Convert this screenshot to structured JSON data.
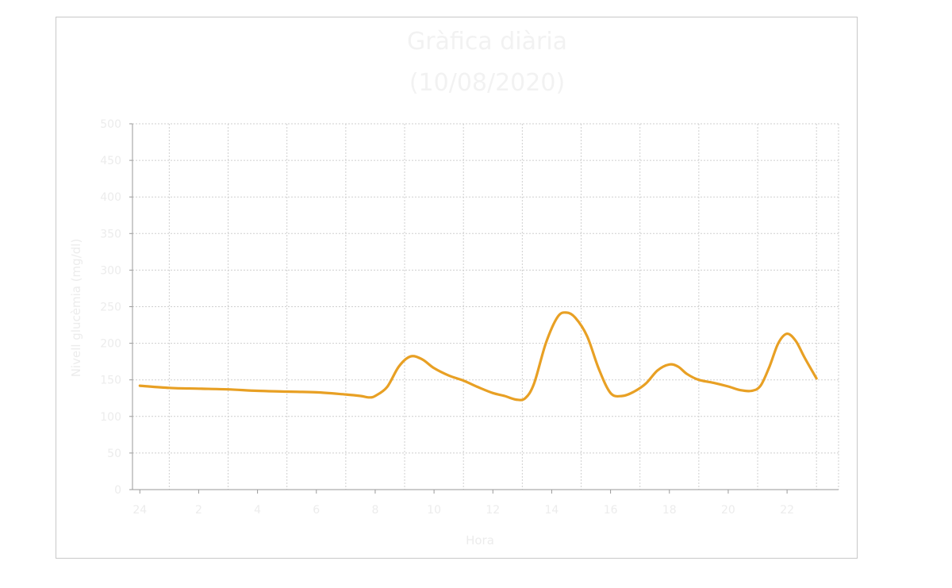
{
  "chart_data": {
    "type": "line",
    "title": "Gràfica diària",
    "subtitle": "(10/08/2020)",
    "xlabel": "Hora",
    "ylabel": "Nivell glucèmia (mg/dl)",
    "ylim": [
      0,
      500
    ],
    "yticks": [
      0,
      50,
      100,
      150,
      200,
      250,
      300,
      350,
      400,
      450,
      500
    ],
    "xlim": [
      -0.25,
      23.75
    ],
    "xticks": [
      0,
      2,
      4,
      6,
      8,
      10,
      12,
      14,
      16,
      18,
      20,
      22
    ],
    "xtick_labels": [
      "24",
      "2",
      "4",
      "6",
      "8",
      "10",
      "12",
      "14",
      "16",
      "18",
      "20",
      "22"
    ],
    "grid": true,
    "series": [
      {
        "color": "#e8a024",
        "x": [
          0,
          1,
          2,
          3,
          4,
          5,
          6,
          7,
          7.5,
          7.8,
          8,
          8.4,
          8.8,
          9.2,
          9.6,
          10,
          10.5,
          11,
          11.5,
          12,
          12.4,
          12.8,
          13.1,
          13.4,
          13.8,
          14.2,
          14.5,
          14.8,
          15.2,
          15.6,
          16,
          16.4,
          16.8,
          17.2,
          17.6,
          18,
          18.3,
          18.6,
          19,
          19.5,
          20,
          20.4,
          20.8,
          21.1,
          21.4,
          21.7,
          22,
          22.3,
          22.6,
          23
        ],
        "y": [
          142,
          139,
          138,
          137,
          135,
          134,
          133,
          130,
          128,
          126,
          128,
          140,
          168,
          182,
          178,
          166,
          156,
          149,
          140,
          132,
          128,
          123,
          125,
          145,
          200,
          236,
          242,
          235,
          210,
          165,
          132,
          128,
          134,
          145,
          163,
          171,
          168,
          158,
          150,
          146,
          141,
          136,
          135,
          142,
          168,
          200,
          213,
          203,
          180,
          152
        ]
      }
    ]
  }
}
